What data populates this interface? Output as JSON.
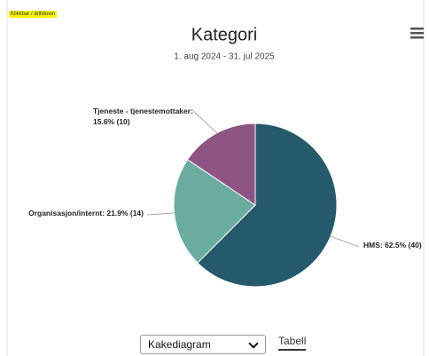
{
  "tag": "Klikkbar / drilldown",
  "chart_data": {
    "type": "pie",
    "title": "Kategori",
    "subtitle": "1. aug 2024 - 31. jul 2025",
    "categories": [
      "HMS",
      "Organisasjon/internt",
      "Tjeneste - tjenestemottaker"
    ],
    "values": [
      62.5,
      21.9,
      15.6
    ],
    "value_labels": [
      [
        "HMS: 62.5% (40)"
      ],
      [
        "Organisasjon/internt: 21.9% (14)"
      ],
      [
        "Tjeneste - tjenestemottaker:",
        "15.6% (10)"
      ]
    ],
    "colors": [
      "#245a6b",
      "#6aada0",
      "#8e5484"
    ]
  },
  "controls": {
    "chart_type": "Kakediagram",
    "table_link": "Tabell"
  }
}
